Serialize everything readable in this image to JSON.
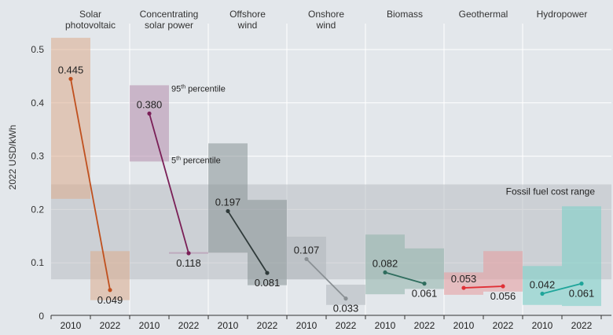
{
  "chart_data": {
    "type": "range-bar-slope",
    "ylabel": "2022 USD/kWh",
    "ylim": [
      0,
      0.52
    ],
    "yticks": [
      "0",
      "0.1",
      "0.2",
      "0.3",
      "0.4",
      "0.5"
    ],
    "ytick_values": [
      0,
      0.1,
      0.2,
      0.3,
      0.4,
      0.5
    ],
    "x_years": [
      "2010",
      "2022"
    ],
    "fossil_range": {
      "label": "Fossil fuel cost range",
      "low": 0.069,
      "high": 0.247
    },
    "annotations": {
      "p95": "95th percentile",
      "p5": "5th percentile"
    },
    "technologies": [
      {
        "name_lines": [
          "Solar",
          "photovoltaic"
        ],
        "color": "#c0501e",
        "box_color": "#dcab8c",
        "box_opacity": 0.55,
        "v2010": 0.445,
        "v2022": 0.049,
        "label2010": "0.445",
        "label2022": "0.049",
        "range2010": [
          0.22,
          0.522
        ],
        "range2022": [
          0.03,
          0.122
        ]
      },
      {
        "name_lines": [
          "Concentrating",
          "solar power"
        ],
        "color": "#7a1f57",
        "box_color": "#b58cab",
        "box_opacity": 0.55,
        "v2010": 0.38,
        "v2022": 0.118,
        "label2010": "0.380",
        "label2022": "0.118",
        "range2010": [
          0.29,
          0.433
        ],
        "range2022": [
          0.117,
          0.12
        ]
      },
      {
        "name_lines": [
          "Offshore",
          "wind"
        ],
        "color": "#2f3a3a",
        "box_color": "#7f8b8e",
        "box_opacity": 0.5,
        "v2010": 0.197,
        "v2022": 0.081,
        "label2010": "0.197",
        "label2022": "0.081",
        "range2010": [
          0.119,
          0.324
        ],
        "range2022": [
          0.058,
          0.218
        ]
      },
      {
        "name_lines": [
          "Onshore",
          "wind"
        ],
        "color": "#8a9094",
        "box_color": "#b1b7bc",
        "box_opacity": 0.55,
        "v2010": 0.107,
        "v2022": 0.033,
        "label2010": "0.107",
        "label2022": "0.033",
        "range2010": [
          0.069,
          0.149
        ],
        "range2022": [
          0.021,
          0.059
        ]
      },
      {
        "name_lines": [
          "Biomass"
        ],
        "color": "#2f6d5e",
        "box_color": "#8fb3aa",
        "box_opacity": 0.55,
        "v2010": 0.082,
        "v2022": 0.061,
        "label2010": "0.082",
        "label2022": "0.061",
        "range2010": [
          0.041,
          0.153
        ],
        "range2022": [
          0.051,
          0.127
        ]
      },
      {
        "name_lines": [
          "Geothermal"
        ],
        "color": "#e03036",
        "box_color": "#e89a9c",
        "box_opacity": 0.55,
        "v2010": 0.053,
        "v2022": 0.056,
        "label2010": "0.053",
        "label2022": "0.056",
        "range2010": [
          0.04,
          0.082
        ],
        "range2022": [
          0.046,
          0.122
        ]
      },
      {
        "name_lines": [
          "Hydropower"
        ],
        "color": "#1fa59a",
        "box_color": "#7fd0c8",
        "box_opacity": 0.6,
        "v2010": 0.042,
        "v2022": 0.061,
        "label2010": "0.042",
        "label2022": "0.061",
        "range2010": [
          0.021,
          0.094
        ],
        "range2022": [
          0.019,
          0.206
        ]
      }
    ]
  }
}
